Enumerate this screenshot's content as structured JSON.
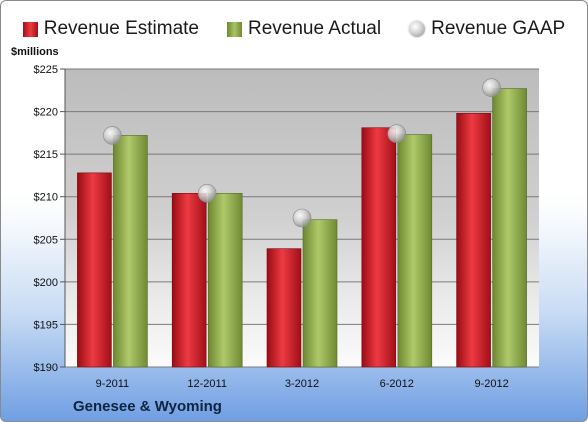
{
  "chart_data": {
    "type": "bar",
    "unit_label": "$millions",
    "categories": [
      "9-2011",
      "12-2011",
      "3-2012",
      "6-2012",
      "9-2012"
    ],
    "series": [
      {
        "name": "Revenue Estimate",
        "kind": "bar",
        "color": "#c8141c",
        "values": [
          212.8,
          210.4,
          203.9,
          218.1,
          219.8
        ]
      },
      {
        "name": "Revenue Actual",
        "kind": "bar",
        "color": "#8fae48",
        "values": [
          217.2,
          210.4,
          207.3,
          217.3,
          222.7
        ]
      },
      {
        "name": "Revenue GAAP",
        "kind": "marker",
        "color": "#b8b8b8",
        "values": [
          217.2,
          210.4,
          207.5,
          217.4,
          222.8
        ]
      }
    ],
    "ylim": [
      190,
      225
    ],
    "yticks": [
      190,
      195,
      200,
      205,
      210,
      215,
      220,
      225
    ],
    "ytick_labels": [
      "$190",
      "$195",
      "$200",
      "$205",
      "$210",
      "$215",
      "$220",
      "$225"
    ],
    "grid": true,
    "legend_position": "top",
    "footer": "Genesee & Wyoming"
  }
}
